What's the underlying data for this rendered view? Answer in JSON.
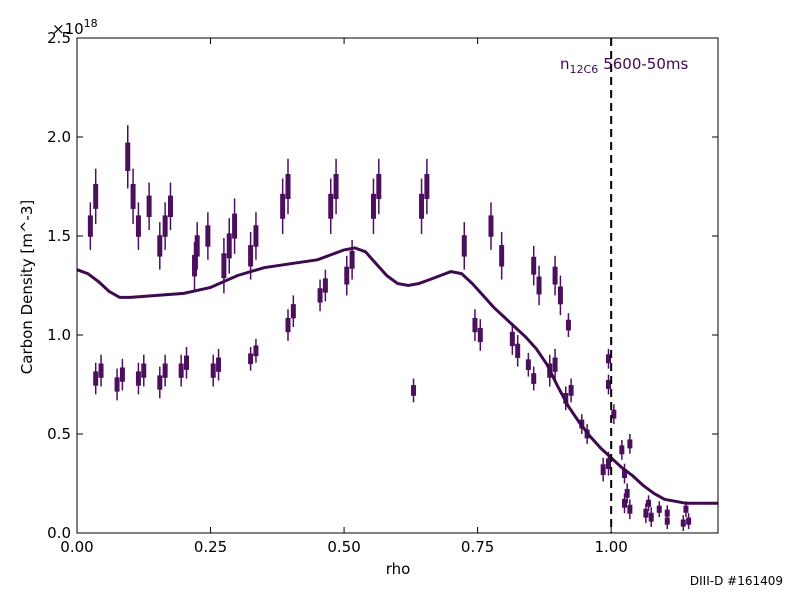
{
  "chart_data": {
    "type": "scatter",
    "xlabel": "rho",
    "ylabel": "Carbon Density [m^-3]",
    "y_multiplier_base": "×10",
    "y_multiplier_exp": "18",
    "xlim": [
      0.0,
      1.2
    ],
    "ylim": [
      0.0,
      2.5
    ],
    "x_ticks": [
      0.0,
      0.25,
      0.5,
      0.75,
      1.0
    ],
    "x_tick_labels": [
      "0.00",
      "0.25",
      "0.50",
      "0.75",
      "1.00"
    ],
    "y_ticks": [
      0.0,
      0.5,
      1.0,
      1.5,
      2.0,
      2.5
    ],
    "y_tick_labels": [
      "0.0",
      "0.5",
      "1.0",
      "1.5",
      "2.0",
      "2.5"
    ],
    "grid": false,
    "annotation": {
      "species_main": "n",
      "species_sub": "12C6",
      "time": "5600-50ms"
    },
    "footer": "DIII-D #161409",
    "colors": {
      "series": "#4b0f5e",
      "fit": "#3d0a4f",
      "separatrix": "#000000"
    },
    "separatrix_x": 1.0,
    "series": [
      {
        "kind": "measurements_upper",
        "x": [
          0.025,
          0.035,
          0.095,
          0.105,
          0.115,
          0.135,
          0.155,
          0.165,
          0.175,
          0.22,
          0.225,
          0.245,
          0.275,
          0.285,
          0.295,
          0.325,
          0.335,
          0.385,
          0.395,
          0.475,
          0.485,
          0.555,
          0.565,
          0.645,
          0.655,
          0.725,
          0.775,
          0.795,
          0.855,
          0.865,
          0.895,
          0.905
        ],
        "y": [
          1.55,
          1.7,
          1.9,
          1.7,
          1.55,
          1.65,
          1.45,
          1.55,
          1.65,
          1.35,
          1.45,
          1.5,
          1.35,
          1.45,
          1.55,
          1.4,
          1.5,
          1.65,
          1.75,
          1.65,
          1.75,
          1.65,
          1.75,
          1.65,
          1.75,
          1.45,
          1.55,
          1.4,
          1.35,
          1.25,
          1.3,
          1.2
        ],
        "err": [
          0.12,
          0.14,
          0.16,
          0.14,
          0.12,
          0.12,
          0.12,
          0.12,
          0.12,
          0.12,
          0.12,
          0.12,
          0.14,
          0.14,
          0.14,
          0.12,
          0.12,
          0.14,
          0.14,
          0.14,
          0.14,
          0.14,
          0.14,
          0.14,
          0.14,
          0.12,
          0.12,
          0.12,
          0.1,
          0.1,
          0.1,
          0.1
        ]
      },
      {
        "kind": "measurements_lower",
        "x": [
          0.035,
          0.045,
          0.075,
          0.085,
          0.115,
          0.125,
          0.155,
          0.165,
          0.195,
          0.205,
          0.255,
          0.265,
          0.325,
          0.335,
          0.395,
          0.405,
          0.455,
          0.465,
          0.505,
          0.515,
          0.63,
          0.745,
          0.755,
          0.815,
          0.825,
          0.845,
          0.855,
          0.885,
          0.895,
          0.915,
          0.925,
          0.945,
          0.955,
          0.985,
          0.995,
          1.025,
          1.035,
          1.065,
          1.075,
          1.105,
          1.135,
          1.145
        ],
        "y": [
          0.78,
          0.82,
          0.75,
          0.8,
          0.78,
          0.82,
          0.76,
          0.82,
          0.82,
          0.86,
          0.82,
          0.85,
          0.88,
          0.92,
          1.05,
          1.12,
          1.2,
          1.25,
          1.3,
          1.38,
          0.72,
          1.05,
          1.0,
          0.98,
          0.92,
          0.85,
          0.78,
          0.82,
          0.85,
          0.68,
          0.72,
          0.55,
          0.5,
          0.32,
          0.35,
          0.15,
          0.12,
          0.1,
          0.08,
          0.06,
          0.05,
          0.06
        ],
        "err": [
          0.08,
          0.08,
          0.08,
          0.08,
          0.08,
          0.08,
          0.08,
          0.08,
          0.08,
          0.08,
          0.08,
          0.08,
          0.06,
          0.06,
          0.08,
          0.08,
          0.08,
          0.08,
          0.1,
          0.1,
          0.06,
          0.08,
          0.08,
          0.08,
          0.08,
          0.06,
          0.06,
          0.08,
          0.08,
          0.06,
          0.06,
          0.05,
          0.05,
          0.06,
          0.06,
          0.05,
          0.05,
          0.05,
          0.05,
          0.04,
          0.04,
          0.04
        ]
      },
      {
        "kind": "edge_points",
        "x": [
          0.92,
          0.995,
          0.995,
          1.005,
          1.02,
          1.025,
          1.03,
          1.035,
          1.07,
          1.09,
          1.105,
          1.14
        ],
        "y": [
          1.05,
          0.88,
          0.75,
          0.6,
          0.42,
          0.3,
          0.2,
          0.45,
          0.15,
          0.12,
          0.1,
          0.12
        ],
        "err": [
          0.06,
          0.05,
          0.05,
          0.05,
          0.05,
          0.05,
          0.05,
          0.05,
          0.04,
          0.04,
          0.04,
          0.04
        ]
      }
    ],
    "fit": {
      "x": [
        0.0,
        0.02,
        0.04,
        0.06,
        0.08,
        0.1,
        0.15,
        0.2,
        0.25,
        0.3,
        0.35,
        0.4,
        0.45,
        0.5,
        0.52,
        0.54,
        0.56,
        0.58,
        0.6,
        0.62,
        0.64,
        0.66,
        0.68,
        0.7,
        0.72,
        0.74,
        0.76,
        0.78,
        0.8,
        0.82,
        0.84,
        0.86,
        0.88,
        0.9,
        0.92,
        0.94,
        0.96,
        0.98,
        1.0,
        1.02,
        1.04,
        1.06,
        1.08,
        1.1,
        1.12,
        1.14,
        1.16,
        1.18,
        1.2
      ],
      "y": [
        1.33,
        1.31,
        1.27,
        1.22,
        1.19,
        1.19,
        1.2,
        1.21,
        1.24,
        1.3,
        1.34,
        1.36,
        1.38,
        1.43,
        1.44,
        1.42,
        1.36,
        1.3,
        1.26,
        1.25,
        1.26,
        1.28,
        1.3,
        1.32,
        1.31,
        1.26,
        1.2,
        1.14,
        1.09,
        1.04,
        0.99,
        0.93,
        0.85,
        0.74,
        0.64,
        0.56,
        0.49,
        0.43,
        0.38,
        0.33,
        0.29,
        0.24,
        0.2,
        0.17,
        0.16,
        0.15,
        0.15,
        0.15,
        0.15
      ]
    }
  }
}
